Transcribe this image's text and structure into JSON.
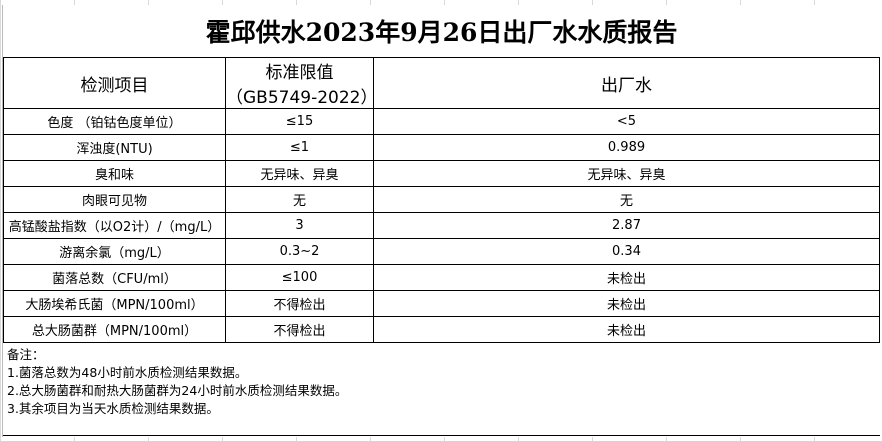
{
  "title": "霍邱供水2023年9月26日出厂水水质报告",
  "headers": [
    "检测项目",
    "标准限值（GB5749-2022）",
    "出厂水"
  ],
  "rows": [
    [
      "色度 （铂钴色度单位）",
      "≤15",
      "<5"
    ],
    [
      "浑浊度(NTU)",
      "≤1",
      "0.989"
    ],
    [
      "臭和味",
      "无异味、异臭",
      "无异味、异臭"
    ],
    [
      "肉眼可见物",
      "无",
      "无"
    ],
    [
      "高锰酸盐指数（以O2计）/（mg/L）",
      "3",
      "2.87"
    ],
    [
      "游离余氯（mg/L）",
      "0.3~2",
      "0.34"
    ],
    [
      "菌落总数（CFU/ml）",
      "≤100",
      "未检出"
    ],
    [
      "大肠埃希氏菌（MPN/100ml）",
      "不得检出",
      "未检出"
    ],
    [
      "总大肠菌群（MPN/100ml）",
      "不得检出",
      "未检出"
    ]
  ],
  "notes": {
    "heading": "备注：",
    "items": [
      "1.菌落总数为48小时前水质检测结果数据。",
      "2.总大肠菌群和耐热大肠菌群为24小时前水质检测结果数据。",
      "3.其余项目为当天水质检测结果数据。"
    ]
  }
}
